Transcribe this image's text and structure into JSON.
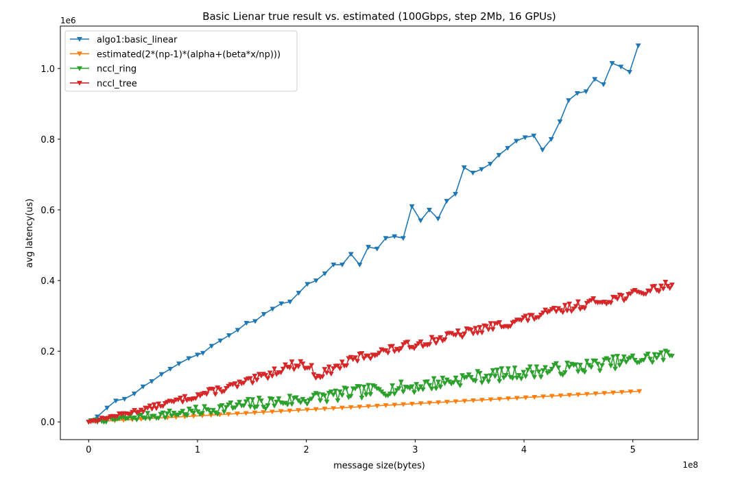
{
  "chart_data": {
    "type": "line",
    "title": "Basic Lienar true result vs. estimated (100Gbps, step 2Mb, 16 GPUs)",
    "xlabel": "message size(bytes)",
    "ylabel": "avg latency(us)",
    "x_offset_label": "1e8",
    "y_offset_label": "1e6",
    "xlim": [
      -0.26,
      5.6
    ],
    "ylim": [
      -0.05,
      1.12
    ],
    "x_scale_note": "x in units of 1e8 bytes, y in units of 1e6 us",
    "xticks": [
      0,
      1,
      2,
      3,
      4,
      5
    ],
    "xtick_labels": [
      "0",
      "1",
      "2",
      "3",
      "4",
      "5"
    ],
    "yticks": [
      0.0,
      0.2,
      0.4,
      0.6,
      0.8,
      1.0
    ],
    "ytick_labels": [
      "0.0",
      "0.2",
      "0.4",
      "0.6",
      "0.8",
      "1.0"
    ],
    "grid": false,
    "legend_position": "upper-left",
    "series": [
      {
        "name": "algo1:basic_linear",
        "color": "#1f77b4",
        "x": [
          0.0,
          0.08,
          0.17,
          0.25,
          0.33,
          0.42,
          0.5,
          0.58,
          0.67,
          0.75,
          0.83,
          0.92,
          1.0,
          1.05,
          1.13,
          1.21,
          1.29,
          1.37,
          1.45,
          1.53,
          1.61,
          1.69,
          1.77,
          1.85,
          1.93,
          2.01,
          2.09,
          2.17,
          2.25,
          2.33,
          2.41,
          2.49,
          2.57,
          2.65,
          2.73,
          2.81,
          2.89,
          2.97,
          3.05,
          3.13,
          3.21,
          3.29,
          3.37,
          3.45,
          3.53,
          3.61,
          3.69,
          3.77,
          3.85,
          3.93,
          4.01,
          4.09,
          4.17,
          4.25,
          4.33,
          4.41,
          4.49,
          4.57,
          4.65,
          4.73,
          4.81,
          4.89,
          4.97,
          5.05
        ],
        "y": [
          0.0,
          0.015,
          0.04,
          0.06,
          0.065,
          0.08,
          0.1,
          0.115,
          0.135,
          0.15,
          0.165,
          0.18,
          0.19,
          0.195,
          0.215,
          0.23,
          0.245,
          0.26,
          0.28,
          0.285,
          0.305,
          0.32,
          0.335,
          0.34,
          0.365,
          0.39,
          0.4,
          0.42,
          0.445,
          0.445,
          0.475,
          0.445,
          0.495,
          0.49,
          0.52,
          0.525,
          0.52,
          0.61,
          0.57,
          0.6,
          0.575,
          0.625,
          0.645,
          0.72,
          0.705,
          0.715,
          0.73,
          0.755,
          0.775,
          0.795,
          0.805,
          0.81,
          0.77,
          0.8,
          0.85,
          0.91,
          0.93,
          0.935,
          0.97,
          0.955,
          1.015,
          1.005,
          0.99,
          1.065
        ]
      },
      {
        "name": "estimated(2*(np-1)*(alpha+(beta*x/np)))",
        "color": "#ff7f0e",
        "x_start": 0.0,
        "x_end": 5.06,
        "y_start": 0.0,
        "y_end": 0.087,
        "points": 64
      },
      {
        "name": "nccl_ring",
        "color": "#2ca02c",
        "x_start": 0.0,
        "x_end": 5.36,
        "anchors_x": [
          0.0,
          1.0,
          1.5,
          2.0,
          2.5,
          3.0,
          3.5,
          4.0,
          4.5,
          5.0,
          5.36
        ],
        "anchors_y": [
          0.0,
          0.03,
          0.05,
          0.065,
          0.085,
          0.1,
          0.125,
          0.14,
          0.155,
          0.175,
          0.19
        ],
        "points": 268,
        "jitter": 0.018,
        "seed": 7
      },
      {
        "name": "nccl_tree",
        "color": "#d62728",
        "x_start": 0.0,
        "x_end": 5.36,
        "anchors_x": [
          0.0,
          0.5,
          1.0,
          1.5,
          1.8,
          1.95,
          2.05,
          2.1,
          2.5,
          3.0,
          3.5,
          4.0,
          4.5,
          5.0,
          5.36
        ],
        "anchors_y": [
          0.0,
          0.035,
          0.075,
          0.115,
          0.155,
          0.165,
          0.15,
          0.13,
          0.185,
          0.22,
          0.255,
          0.29,
          0.33,
          0.36,
          0.39
        ],
        "points": 268,
        "jitter": 0.012,
        "seed": 13
      }
    ]
  }
}
